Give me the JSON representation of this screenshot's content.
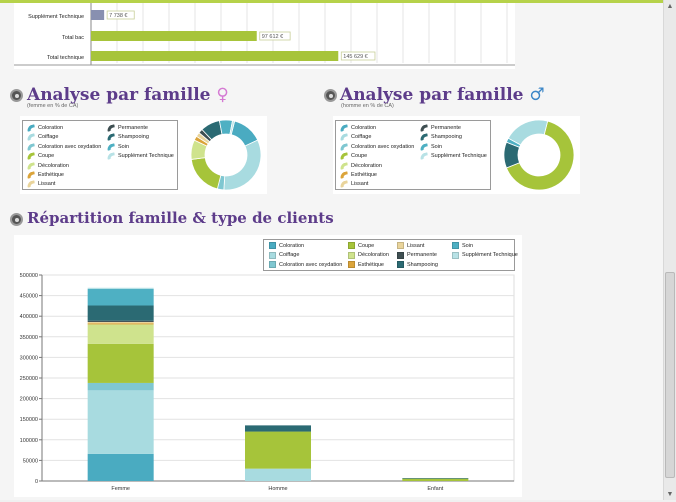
{
  "top_chart": {
    "categories": [
      "Supplément Technique",
      "Total bac",
      "Total technique"
    ],
    "values": [
      7738,
      97612,
      145629
    ],
    "labels": [
      "7 738 €",
      "97 612 €",
      "145 629 €"
    ],
    "xmax": 245000,
    "colors": [
      "#8890b0",
      "#a7c43a",
      "#a7c43a"
    ]
  },
  "analyse_femme": {
    "title": "Analyse par famille",
    "symbol": "♀",
    "subtitle": "(femme en % de CA)",
    "legend_left": [
      "Coloration",
      "Coiffage",
      "Coloration avec oxydation",
      "Coupe",
      "Décoloration",
      "Esthétique",
      "Lissant"
    ],
    "legend_right": [
      "Permanente",
      "Shampooing",
      "Soin",
      "Supplément Technique"
    ],
    "slices": [
      {
        "label": "Coloration",
        "value": 14,
        "color": "#4aabc1"
      },
      {
        "label": "Coiffage",
        "value": 33,
        "color": "#a8dbe0"
      },
      {
        "label": "Coloration avec oxydation",
        "value": 3,
        "color": "#7fc7d1"
      },
      {
        "label": "Coupe",
        "value": 19,
        "color": "#a6c43a"
      },
      {
        "label": "Décoloration",
        "value": 9,
        "color": "#cfe38d"
      },
      {
        "label": "Esthétique",
        "value": 2,
        "color": "#dba43a"
      },
      {
        "label": "Lissant",
        "value": 2,
        "color": "#e9d49b"
      },
      {
        "label": "Permanente",
        "value": 2,
        "color": "#3f4f52"
      },
      {
        "label": "Shampooing",
        "value": 9,
        "color": "#2b6a73"
      },
      {
        "label": "Soin",
        "value": 6,
        "color": "#4eb0c3"
      },
      {
        "label": "Supplément Technique",
        "value": 1,
        "color": "#b8e2e6"
      }
    ]
  },
  "analyse_homme": {
    "title": "Analyse par famille",
    "symbol": "♂",
    "subtitle": "(homme en % de CA)",
    "legend_left": [
      "Coloration",
      "Coiffage",
      "Coloration avec oxydation",
      "Coupe",
      "Décoloration",
      "Esthétique",
      "Lissant"
    ],
    "legend_right": [
      "Permanente",
      "Shampooing",
      "Soin",
      "Supplément Technique"
    ],
    "slices": [
      {
        "label": "Coupe",
        "value": 65,
        "color": "#a6c43a"
      },
      {
        "label": "Shampooing",
        "value": 12,
        "color": "#2b6a73"
      },
      {
        "label": "Soin",
        "value": 2,
        "color": "#4eb0c3"
      },
      {
        "label": "Coiffage",
        "value": 21,
        "color": "#a8dbe0"
      }
    ]
  },
  "repartition": {
    "title": "Répartition famille & type de clients",
    "legend": [
      {
        "label": "Coloration",
        "color": "#4aabc1"
      },
      {
        "label": "Coupe",
        "color": "#a6c43a"
      },
      {
        "label": "Lissant",
        "color": "#e9d49b"
      },
      {
        "label": "Soin",
        "color": "#4eb0c3"
      },
      {
        "label": "Coiffage",
        "color": "#a8dbe0"
      },
      {
        "label": "Décoloration",
        "color": "#cfe38d"
      },
      {
        "label": "Permanente",
        "color": "#3f4f52"
      },
      {
        "label": "Supplément Technique",
        "color": "#b8e2e6"
      },
      {
        "label": "Coloration avec oxydation",
        "color": "#7fc7d1"
      },
      {
        "label": "Esthétique",
        "color": "#dba43a"
      },
      {
        "label": "Shampooing",
        "color": "#2b6a73"
      }
    ]
  },
  "chart_data": {
    "type": "bar",
    "stacked": true,
    "categories": [
      "Femme",
      "Homme",
      "Enfant"
    ],
    "ylim": [
      0,
      500000
    ],
    "yticks": [
      0,
      50000,
      100000,
      150000,
      200000,
      250000,
      300000,
      350000,
      400000,
      450000,
      500000
    ],
    "series": [
      {
        "name": "Coloration",
        "color": "#4aabc1",
        "values": [
          66000,
          0,
          0
        ]
      },
      {
        "name": "Coiffage",
        "color": "#a8dbe0",
        "values": [
          154000,
          30000,
          0
        ]
      },
      {
        "name": "Coloration avec oxydation",
        "color": "#7fc7d1",
        "values": [
          18000,
          0,
          0
        ]
      },
      {
        "name": "Coupe",
        "color": "#a6c43a",
        "values": [
          95000,
          90000,
          6000
        ]
      },
      {
        "name": "Décoloration",
        "color": "#cfe38d",
        "values": [
          47000,
          0,
          0
        ]
      },
      {
        "name": "Esthétique",
        "color": "#dba43a",
        "values": [
          3000,
          0,
          0
        ]
      },
      {
        "name": "Lissant",
        "color": "#e9d49b",
        "values": [
          3000,
          0,
          0
        ]
      },
      {
        "name": "Permanente",
        "color": "#3f4f52",
        "values": [
          3000,
          0,
          0
        ]
      },
      {
        "name": "Shampooing",
        "color": "#2b6a73",
        "values": [
          37000,
          15000,
          1000
        ]
      },
      {
        "name": "Soin",
        "color": "#4eb0c3",
        "values": [
          40000,
          0,
          0
        ]
      },
      {
        "name": "Supplément Technique",
        "color": "#b8e2e6",
        "values": [
          3000,
          0,
          0
        ]
      }
    ]
  }
}
